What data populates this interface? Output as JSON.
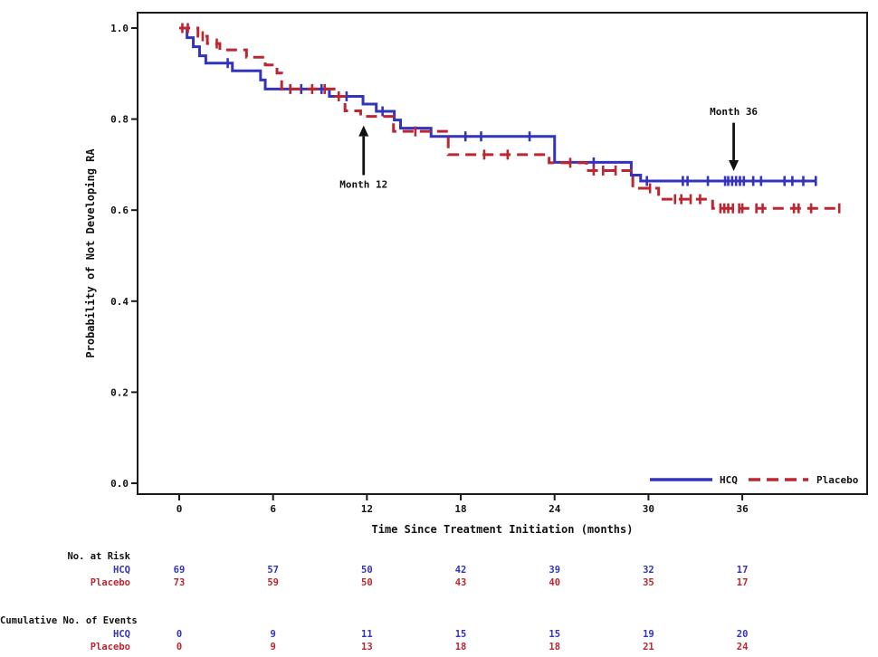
{
  "axes": {
    "x": {
      "label": "Time Since Treatment Initiation (months)",
      "ticks": [
        0,
        6,
        12,
        18,
        24,
        30,
        36
      ],
      "min": 0,
      "max": 44
    },
    "y": {
      "label": "Probability of Not Developing RA",
      "tick_labels": [
        "0.0",
        "0.2",
        "0.4",
        "0.6",
        "0.8",
        "1.0"
      ],
      "tick_values": [
        0.0,
        0.2,
        0.4,
        0.6,
        0.8,
        1.0
      ],
      "min": 0.0,
      "max": 1.0
    }
  },
  "chart_data": {
    "type": "line",
    "subtype": "kaplan-meier-step",
    "title": "",
    "xlabel": "Time Since Treatment Initiation (months)",
    "ylabel": "Probability of Not Developing RA",
    "xlim": [
      0,
      44
    ],
    "ylim": [
      0.0,
      1.0
    ],
    "grid": false,
    "legend_position": "inside-bottom-right",
    "series": [
      {
        "name": "HCQ",
        "color": "#3333bc",
        "line_style": "solid",
        "steps": [
          [
            0,
            1.0
          ],
          [
            0.5,
            0.979
          ],
          [
            0.9,
            0.959
          ],
          [
            1.3,
            0.939
          ],
          [
            1.7,
            0.923
          ],
          [
            3.4,
            0.906
          ],
          [
            5.2,
            0.886
          ],
          [
            5.5,
            0.866
          ],
          [
            9.6,
            0.85
          ],
          [
            11.75,
            0.833
          ],
          [
            12.6,
            0.817
          ],
          [
            13.75,
            0.798
          ],
          [
            14.15,
            0.78
          ],
          [
            16.1,
            0.762
          ],
          [
            24.0,
            0.705
          ],
          [
            28.9,
            0.677
          ],
          [
            29.5,
            0.664
          ]
        ],
        "end_month": 40.75,
        "censors": [
          [
            3.1,
            0.923
          ],
          [
            7.8,
            0.866
          ],
          [
            9.1,
            0.866
          ],
          [
            10.7,
            0.85
          ],
          [
            13.0,
            0.817
          ],
          [
            18.3,
            0.762
          ],
          [
            19.3,
            0.762
          ],
          [
            22.4,
            0.762
          ],
          [
            26.5,
            0.705
          ],
          [
            29.9,
            0.664
          ],
          [
            32.2,
            0.664
          ],
          [
            32.5,
            0.664
          ],
          [
            33.8,
            0.664
          ],
          [
            34.9,
            0.664
          ],
          [
            35.1,
            0.664
          ],
          [
            35.35,
            0.664
          ],
          [
            35.6,
            0.664
          ],
          [
            35.85,
            0.664
          ],
          [
            36.1,
            0.664
          ],
          [
            36.7,
            0.664
          ],
          [
            37.2,
            0.664
          ],
          [
            38.7,
            0.664
          ],
          [
            39.2,
            0.664
          ],
          [
            39.9,
            0.664
          ],
          [
            40.7,
            0.664
          ]
        ]
      },
      {
        "name": "Placebo",
        "color": "#bb2630",
        "line_style": "dashed",
        "steps": [
          [
            0,
            1.0
          ],
          [
            1.2,
            0.982
          ],
          [
            1.8,
            0.966
          ],
          [
            2.6,
            0.952
          ],
          [
            4.3,
            0.936
          ],
          [
            5.5,
            0.919
          ],
          [
            6.25,
            0.901
          ],
          [
            6.55,
            0.866
          ],
          [
            10.0,
            0.85
          ],
          [
            10.6,
            0.818
          ],
          [
            11.6,
            0.806
          ],
          [
            13.7,
            0.773
          ],
          [
            17.2,
            0.722
          ],
          [
            23.65,
            0.704
          ],
          [
            26.05,
            0.687
          ],
          [
            29.0,
            0.648
          ],
          [
            30.65,
            0.624
          ],
          [
            34.1,
            0.604
          ]
        ],
        "end_month": 42.25,
        "censors": [
          [
            0.2,
            1.0
          ],
          [
            0.55,
            1.0
          ],
          [
            1.5,
            0.982
          ],
          [
            2.4,
            0.966
          ],
          [
            7.1,
            0.866
          ],
          [
            8.5,
            0.866
          ],
          [
            9.3,
            0.866
          ],
          [
            10.2,
            0.85
          ],
          [
            15.1,
            0.773
          ],
          [
            19.5,
            0.722
          ],
          [
            21.0,
            0.722
          ],
          [
            25.0,
            0.704
          ],
          [
            26.5,
            0.687
          ],
          [
            27.1,
            0.687
          ],
          [
            27.9,
            0.687
          ],
          [
            30.1,
            0.648
          ],
          [
            31.7,
            0.624
          ],
          [
            32.1,
            0.624
          ],
          [
            32.7,
            0.624
          ],
          [
            33.3,
            0.624
          ],
          [
            34.6,
            0.604
          ],
          [
            34.85,
            0.604
          ],
          [
            35.1,
            0.604
          ],
          [
            35.4,
            0.604
          ],
          [
            35.8,
            0.604
          ],
          [
            36.0,
            0.604
          ],
          [
            36.9,
            0.604
          ],
          [
            37.3,
            0.604
          ],
          [
            39.3,
            0.604
          ],
          [
            39.6,
            0.604
          ],
          [
            40.4,
            0.604
          ],
          [
            42.2,
            0.604
          ]
        ]
      }
    ],
    "annotations": [
      {
        "label": "Month 12",
        "month": 11.79,
        "direction": "up",
        "tip_prob": 0.786,
        "tail_prob": 0.677,
        "text_prob": 0.656
      },
      {
        "label": "Month 36",
        "month": 35.45,
        "direction": "down",
        "tip_prob": 0.686,
        "tail_prob": 0.792,
        "text_prob": 0.816
      }
    ]
  },
  "legend": {
    "items": [
      {
        "label": "HCQ"
      },
      {
        "label": "Placebo"
      }
    ]
  },
  "risk_table": {
    "sections": [
      {
        "header": "No. at Risk",
        "rows": [
          {
            "label": "HCQ",
            "series_index": 0,
            "values": [
              "69",
              "57",
              "50",
              "42",
              "39",
              "32",
              "17"
            ]
          },
          {
            "label": "Placebo",
            "series_index": 1,
            "values": [
              "73",
              "59",
              "50",
              "43",
              "40",
              "35",
              "17"
            ]
          }
        ]
      },
      {
        "header": "Cumulative No. of Events",
        "rows": [
          {
            "label": "HCQ",
            "series_index": 0,
            "values": [
              "0",
              "9",
              "11",
              "15",
              "15",
              "19",
              "20"
            ]
          },
          {
            "label": "Placebo",
            "series_index": 1,
            "values": [
              "0",
              "9",
              "13",
              "18",
              "18",
              "21",
              "24"
            ]
          }
        ]
      }
    ]
  }
}
